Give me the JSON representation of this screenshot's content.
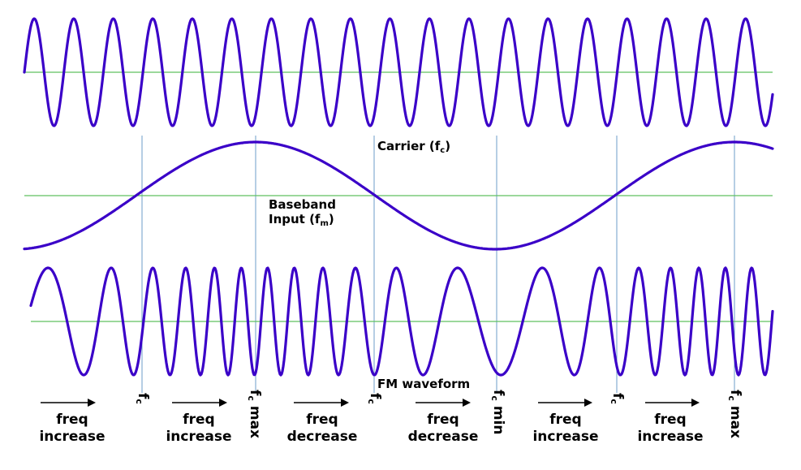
{
  "colors": {
    "wave": "#3a00c8",
    "axis": "#5fc15f",
    "vline": "#6e9ec8",
    "text": "#000000"
  },
  "labels": {
    "carrier_main": "Carrier (f",
    "carrier_sub": "c",
    "carrier_end": ")",
    "baseband_line1": "Baseband",
    "baseband_line2_main": "Input (f",
    "baseband_line2_sub": "m",
    "baseband_line2_end": ")",
    "fm_waveform": "FM waveform"
  },
  "markers": [
    {
      "main": "f",
      "sub": "c",
      "suffix": ""
    },
    {
      "main": "f",
      "sub": "c",
      "suffix": " max"
    },
    {
      "main": "f",
      "sub": "c",
      "suffix": ""
    },
    {
      "main": "f",
      "sub": "c",
      "suffix": " min"
    },
    {
      "main": "f",
      "sub": "c",
      "suffix": ""
    },
    {
      "main": "f",
      "sub": "c",
      "suffix": " max"
    }
  ],
  "freq_labels": [
    {
      "line1": "freq",
      "line2": "increase"
    },
    {
      "line1": "freq",
      "line2": "increase"
    },
    {
      "line1": "freq",
      "line2": "decrease"
    },
    {
      "line1": "freq",
      "line2": "decrease"
    },
    {
      "line1": "freq",
      "line2": "increase"
    },
    {
      "line1": "freq",
      "line2": "increase"
    }
  ]
}
